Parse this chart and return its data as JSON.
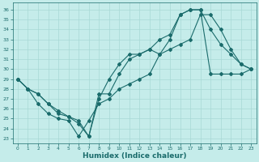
{
  "xlabel": "Humidex (Indice chaleur)",
  "bg_color": "#c5ecea",
  "grid_color": "#a8d8d5",
  "line_color": "#1a6b6b",
  "x_ticks": [
    0,
    1,
    2,
    3,
    4,
    5,
    6,
    7,
    8,
    9,
    10,
    11,
    12,
    13,
    14,
    15,
    16,
    17,
    18,
    19,
    20,
    21,
    22,
    23
  ],
  "y_ticks": [
    23,
    24,
    25,
    26,
    27,
    28,
    29,
    30,
    31,
    32,
    33,
    34,
    35,
    36
  ],
  "xlim": [
    -0.5,
    23.5
  ],
  "ylim": [
    22.5,
    36.7
  ],
  "line1_x": [
    0,
    1,
    2,
    3,
    4,
    5,
    6,
    7,
    8,
    9,
    10,
    11,
    12,
    13,
    14,
    15,
    16,
    17,
    18,
    19,
    20,
    21,
    22,
    23
  ],
  "line1_y": [
    29.0,
    28.0,
    27.5,
    26.5,
    25.8,
    25.2,
    24.8,
    23.2,
    27.5,
    27.5,
    29.5,
    31.0,
    31.5,
    32.0,
    33.0,
    33.5,
    35.5,
    36.0,
    36.0,
    29.5,
    29.5,
    29.5,
    29.5,
    30.0
  ],
  "line2_x": [
    0,
    1,
    2,
    3,
    4,
    5,
    6,
    7,
    8,
    9,
    10,
    11,
    12,
    13,
    14,
    15,
    16,
    17,
    18,
    19,
    20,
    21,
    22,
    23
  ],
  "line2_y": [
    29.0,
    28.0,
    27.5,
    26.5,
    25.5,
    25.2,
    24.5,
    23.2,
    27.0,
    29.0,
    30.5,
    31.5,
    31.5,
    32.0,
    31.5,
    33.0,
    35.5,
    36.0,
    36.0,
    34.0,
    32.5,
    31.5,
    30.5,
    30.0
  ],
  "line3_x": [
    0,
    1,
    2,
    3,
    4,
    5,
    6,
    7,
    8,
    9,
    10,
    11,
    12,
    13,
    14,
    15,
    16,
    17,
    18,
    19,
    20,
    21,
    22,
    23
  ],
  "line3_y": [
    29.0,
    28.0,
    26.5,
    25.5,
    25.0,
    24.8,
    23.2,
    24.8,
    26.5,
    27.0,
    28.0,
    28.5,
    29.0,
    29.5,
    31.5,
    32.0,
    32.5,
    33.0,
    35.5,
    35.5,
    34.0,
    32.0,
    30.5,
    30.0
  ],
  "marker": "D",
  "markersize": 2.0,
  "linewidth": 0.8
}
